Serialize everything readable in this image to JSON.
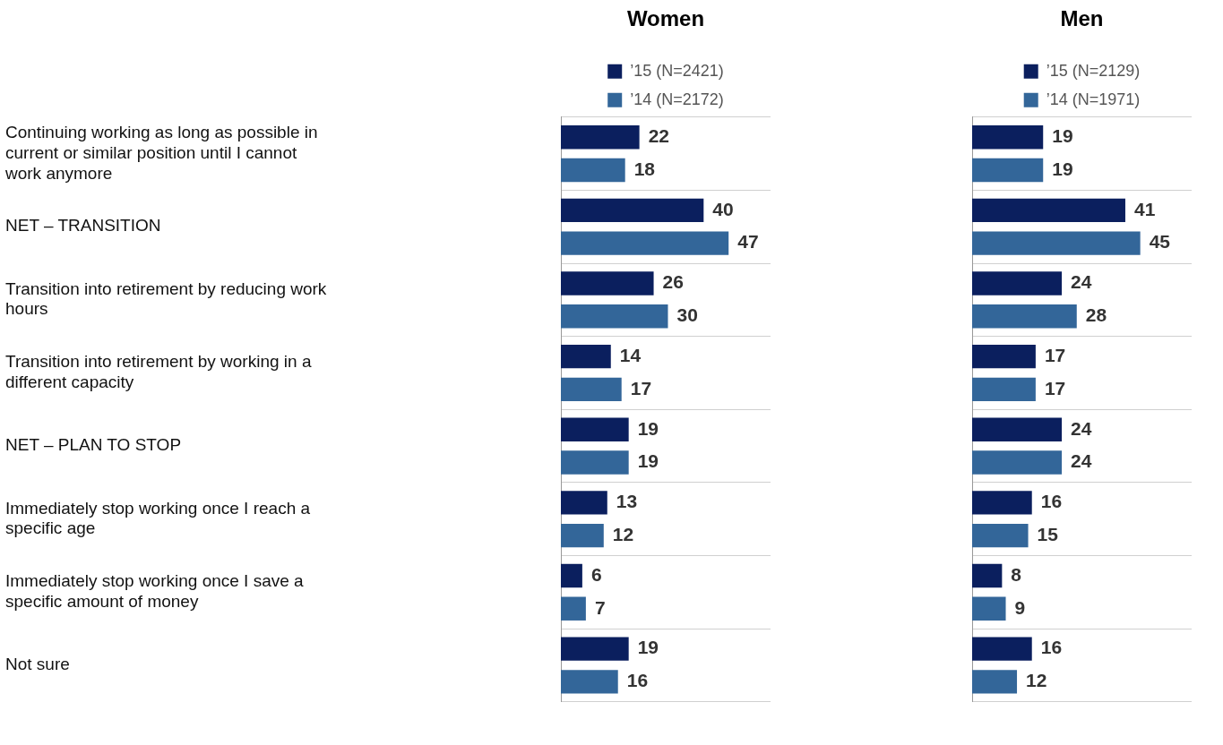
{
  "chart_data": [
    {
      "type": "bar",
      "orientation": "horizontal",
      "title": "Women",
      "categories": [
        "Continuing working as long as possible in current or similar position until I cannot work anymore",
        "NET – TRANSITION",
        "Transition into retirement by reducing work hours",
        "Transition into retirement by working in a different capacity",
        "NET – PLAN TO STOP",
        "Immediately stop working once I reach a specific age",
        "Immediately stop working once I save a specific amount of money",
        "Not sure"
      ],
      "series": [
        {
          "name": "’15 (N=2421)",
          "color": "#0b1f5e",
          "values": [
            22,
            40,
            26,
            14,
            19,
            13,
            6,
            19
          ]
        },
        {
          "name": "’14 (N=2172)",
          "color": "#336699",
          "values": [
            18,
            47,
            30,
            17,
            19,
            12,
            7,
            16
          ]
        }
      ],
      "data_labels": true,
      "grid": "y",
      "legend": "top",
      "tick_labels": "y"
    },
    {
      "type": "bar",
      "orientation": "horizontal",
      "title": "Men",
      "categories": [
        null,
        null,
        null,
        null,
        null,
        null,
        null,
        null
      ],
      "series": [
        {
          "name": "’15 (N=2129)",
          "color": "#0b1f5e",
          "values": [
            19,
            41,
            24,
            17,
            24,
            16,
            8,
            16
          ]
        },
        {
          "name": "’14 (N=1971)",
          "color": "#336699",
          "values": [
            19,
            45,
            28,
            17,
            24,
            15,
            9,
            12
          ]
        }
      ],
      "data_labels": true,
      "grid": "y",
      "legend": "top",
      "tick_labels": false
    }
  ]
}
